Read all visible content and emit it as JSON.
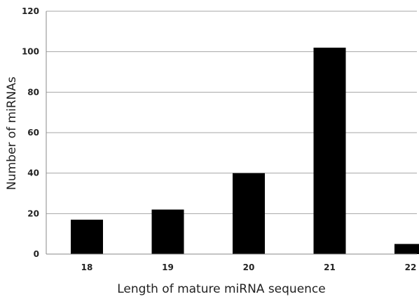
{
  "chart_data": {
    "type": "bar",
    "title": "",
    "xlabel": "Length of mature miRNA sequence",
    "ylabel": "Number of miRNAs",
    "categories": [
      "18",
      "19",
      "20",
      "21",
      "22"
    ],
    "values": [
      17,
      22,
      40,
      102,
      5
    ],
    "ylim": [
      0,
      120
    ],
    "yticks": [
      0,
      20,
      40,
      60,
      80,
      100,
      120
    ],
    "ytick_labels": [
      "0",
      "20",
      "40",
      "60",
      "80",
      "100",
      "120"
    ],
    "grid": true,
    "legend": "none",
    "bar_color": "#000000",
    "grid_color": "#a6a6a6"
  }
}
